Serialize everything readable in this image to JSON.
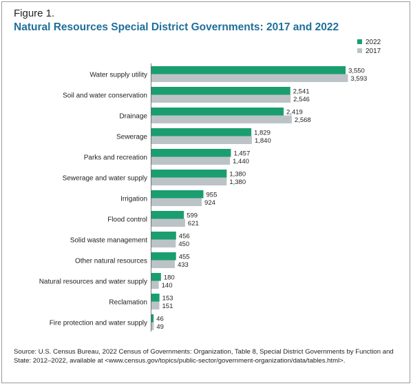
{
  "figure_label": "Figure 1.",
  "title": "Natural Resources Special District Governments: 2017 and 2022",
  "source_note": "Source: U.S. Census Bureau, 2022 Census of Governments: Organization, Table 8, Special District Governments by Function and State: 2012–2022, available at <www.census.gov/topics/public-sector/government-organization/data/tables.html>.",
  "colors": {
    "series_2022": "#1a9e6f",
    "series_2017": "#bcc3c7",
    "title": "#1f6f9a"
  },
  "chart_data": {
    "type": "bar",
    "orientation": "horizontal",
    "title": "Natural Resources Special District Governments: 2017 and 2022",
    "legend_position": "top-right",
    "grid": false,
    "xlim": [
      0,
      3593
    ],
    "categories": [
      "Water supply utility",
      "Soil and water conservation",
      "Drainage",
      "Sewerage",
      "Parks and recreation",
      "Sewerage and water supply",
      "Irrigation",
      "Flood control",
      "Solid waste management",
      "Other natural resources",
      "Natural resources and water supply",
      "Reclamation",
      "Fire protection and water supply"
    ],
    "series": [
      {
        "name": "2022",
        "values": [
          3550,
          2541,
          2419,
          1829,
          1457,
          1380,
          955,
          599,
          456,
          455,
          180,
          153,
          46
        ],
        "labels": [
          "3,550",
          "2,541",
          "2,419",
          "1,829",
          "1,457",
          "1,380",
          "955",
          "599",
          "456",
          "455",
          "180",
          "153",
          "46"
        ]
      },
      {
        "name": "2017",
        "values": [
          3593,
          2546,
          2568,
          1840,
          1440,
          1380,
          924,
          621,
          450,
          433,
          140,
          151,
          49
        ],
        "labels": [
          "3,593",
          "2,546",
          "2,568",
          "1,840",
          "1,440",
          "1,380",
          "924",
          "621",
          "450",
          "433",
          "140",
          "151",
          "49"
        ]
      }
    ]
  }
}
